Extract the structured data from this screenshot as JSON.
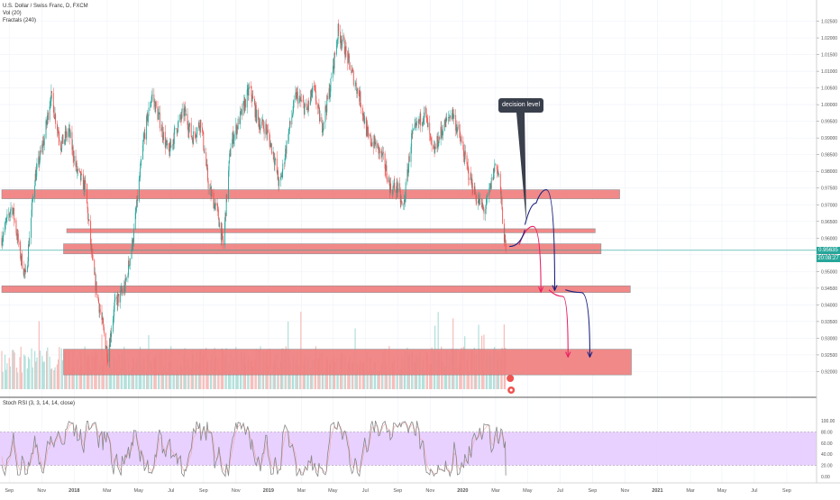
{
  "header": {
    "symbol_line": "U.S. Dollar / Swiss Franc, D, FXCM",
    "indicator_vol": "Vol (20)",
    "indicator_fractals": "Fractals (240)"
  },
  "stoch": {
    "title": "Stoch RSI (3, 3, 14, 14, close)",
    "axis_ticks": [
      "100.00",
      "80.00",
      "60.00",
      "40.00",
      "20.00",
      "0.00"
    ]
  },
  "price_axis": {
    "ticks": [
      "1.02500",
      "1.02000",
      "1.01500",
      "1.01000",
      "1.00500",
      "1.00000",
      "0.99500",
      "0.99000",
      "0.98500",
      "0.98000",
      "0.97500",
      "0.97000",
      "0.96500",
      "0.96000",
      "0.95500",
      "0.95000",
      "0.94500",
      "0.94000",
      "0.93500",
      "0.93000",
      "0.92500",
      "0.92000"
    ],
    "current_price": "0.95635",
    "countdown": "20:08:27"
  },
  "time_axis": {
    "labels": [
      "Sep",
      "Nov",
      "2018",
      "Mar",
      "May",
      "Jul",
      "Sep",
      "Nov",
      "2019",
      "Mar",
      "May",
      "Jul",
      "Sep",
      "Nov",
      "2020",
      "Mar",
      "May",
      "Jul",
      "Sep",
      "Nov",
      "2021",
      "Mar",
      "May",
      "Jul",
      "Sep"
    ]
  },
  "annotation": {
    "callout": "decision level"
  },
  "colors": {
    "up": "#26a69a",
    "down": "#ef5350",
    "zone_fill": "#f08080",
    "zone_stroke": "#888888",
    "path_blue": "#1a237e",
    "path_pink": "#e91e63",
    "stoch_band": "#e6ccff",
    "stoch_line": "#888888"
  },
  "chart_data": {
    "type": "candlestick",
    "title": "U.S. Dollar / Swiss Franc, D, FXCM",
    "ylim": [
      0.9185,
      1.0265
    ],
    "x_range": [
      "2017-08",
      "2021-10"
    ],
    "price_path": [
      {
        "date": "2017-08-01",
        "close": 0.96
      },
      {
        "date": "2017-08-20",
        "close": 0.97
      },
      {
        "date": "2017-09-05",
        "close": 0.955
      },
      {
        "date": "2017-09-15",
        "close": 0.948
      },
      {
        "date": "2017-10-01",
        "close": 0.977
      },
      {
        "date": "2017-10-20",
        "close": 0.99
      },
      {
        "date": "2017-11-01",
        "close": 1.003
      },
      {
        "date": "2017-11-20",
        "close": 0.988
      },
      {
        "date": "2017-12-05",
        "close": 0.992
      },
      {
        "date": "2017-12-20",
        "close": 0.98
      },
      {
        "date": "2018-01-05",
        "close": 0.975
      },
      {
        "date": "2018-01-20",
        "close": 0.95
      },
      {
        "date": "2018-02-05",
        "close": 0.935
      },
      {
        "date": "2018-02-16",
        "close": 0.925
      },
      {
        "date": "2018-03-01",
        "close": 0.94
      },
      {
        "date": "2018-03-20",
        "close": 0.945
      },
      {
        "date": "2018-04-05",
        "close": 0.96
      },
      {
        "date": "2018-04-25",
        "close": 0.99
      },
      {
        "date": "2018-05-10",
        "close": 1.003
      },
      {
        "date": "2018-05-25",
        "close": 0.995
      },
      {
        "date": "2018-06-10",
        "close": 0.985
      },
      {
        "date": "2018-06-25",
        "close": 0.993
      },
      {
        "date": "2018-07-10",
        "close": 0.998
      },
      {
        "date": "2018-07-25",
        "close": 0.99
      },
      {
        "date": "2018-08-10",
        "close": 0.995
      },
      {
        "date": "2018-08-25",
        "close": 0.975
      },
      {
        "date": "2018-09-10",
        "close": 0.968
      },
      {
        "date": "2018-09-21",
        "close": 0.958
      },
      {
        "date": "2018-10-05",
        "close": 0.988
      },
      {
        "date": "2018-10-25",
        "close": 0.997
      },
      {
        "date": "2018-11-10",
        "close": 1.005
      },
      {
        "date": "2018-11-25",
        "close": 0.995
      },
      {
        "date": "2018-12-10",
        "close": 0.993
      },
      {
        "date": "2018-12-25",
        "close": 0.985
      },
      {
        "date": "2019-01-05",
        "close": 0.975
      },
      {
        "date": "2019-01-20",
        "close": 0.99
      },
      {
        "date": "2019-02-05",
        "close": 1.003
      },
      {
        "date": "2019-02-25",
        "close": 0.998
      },
      {
        "date": "2019-03-10",
        "close": 1.005
      },
      {
        "date": "2019-03-25",
        "close": 0.993
      },
      {
        "date": "2019-04-10",
        "close": 1.005
      },
      {
        "date": "2019-04-25",
        "close": 1.022
      },
      {
        "date": "2019-05-05",
        "close": 1.018
      },
      {
        "date": "2019-05-20",
        "close": 1.01
      },
      {
        "date": "2019-06-05",
        "close": 1.002
      },
      {
        "date": "2019-06-20",
        "close": 0.99
      },
      {
        "date": "2019-07-05",
        "close": 0.988
      },
      {
        "date": "2019-07-20",
        "close": 0.983
      },
      {
        "date": "2019-08-01",
        "close": 0.975
      },
      {
        "date": "2019-08-15",
        "close": 0.975
      },
      {
        "date": "2019-08-25",
        "close": 0.968
      },
      {
        "date": "2019-09-10",
        "close": 0.99
      },
      {
        "date": "2019-09-25",
        "close": 0.995
      },
      {
        "date": "2019-10-05",
        "close": 0.998
      },
      {
        "date": "2019-10-20",
        "close": 0.985
      },
      {
        "date": "2019-11-05",
        "close": 0.992
      },
      {
        "date": "2019-11-25",
        "close": 0.998
      },
      {
        "date": "2019-12-10",
        "close": 0.99
      },
      {
        "date": "2019-12-25",
        "close": 0.98
      },
      {
        "date": "2020-01-10",
        "close": 0.972
      },
      {
        "date": "2020-01-25",
        "close": 0.968
      },
      {
        "date": "2020-02-05",
        "close": 0.975
      },
      {
        "date": "2020-02-15",
        "close": 0.983
      },
      {
        "date": "2020-02-22",
        "close": 0.978
      },
      {
        "date": "2020-03-01",
        "close": 0.962
      },
      {
        "date": "2020-03-05",
        "close": 0.956
      }
    ],
    "zones": [
      {
        "from": "2017-08-01",
        "to": "2020-10-05",
        "high": 0.9745,
        "low": 0.9718
      },
      {
        "from": "2017-12-01",
        "to": "2020-08-20",
        "high": 0.9628,
        "low": 0.9616
      },
      {
        "from": "2017-11-25",
        "to": "2020-08-31",
        "high": 0.9583,
        "low": 0.9553
      },
      {
        "from": "2017-08-01",
        "to": "2020-10-25",
        "high": 0.9457,
        "low": 0.9437
      },
      {
        "from": "2017-11-25",
        "to": "2020-10-27",
        "high": 0.9267,
        "low": 0.919
      }
    ],
    "projection_paths": [
      {
        "color": "blue",
        "points": [
          {
            "date": "2020-04-10",
            "price": 0.964
          },
          {
            "date": "2020-05-01",
            "price": 0.9705
          },
          {
            "date": "2020-05-20",
            "price": 0.9745
          },
          {
            "date": "2020-06-05",
            "price": 0.9445
          }
        ]
      },
      {
        "color": "pink",
        "points": [
          {
            "date": "2020-03-30",
            "price": 0.958
          },
          {
            "date": "2020-04-25",
            "price": 0.9635
          },
          {
            "date": "2020-05-10",
            "price": 0.944
          }
        ]
      },
      {
        "color": "pink",
        "points": [
          {
            "date": "2020-05-25",
            "price": 0.9445
          },
          {
            "date": "2020-06-20",
            "price": 0.9425
          },
          {
            "date": "2020-06-30",
            "price": 0.9245
          }
        ]
      },
      {
        "color": "blue",
        "points": [
          {
            "date": "2020-06-25",
            "price": 0.9445
          },
          {
            "date": "2020-07-25",
            "price": 0.9437
          },
          {
            "date": "2020-08-10",
            "price": 0.9245
          }
        ]
      }
    ],
    "current_price": 0.95635,
    "stoch_rsi": {
      "ylim": [
        0,
        100
      ],
      "band": [
        20,
        80
      ],
      "last_value": 2
    },
    "grid": true
  }
}
